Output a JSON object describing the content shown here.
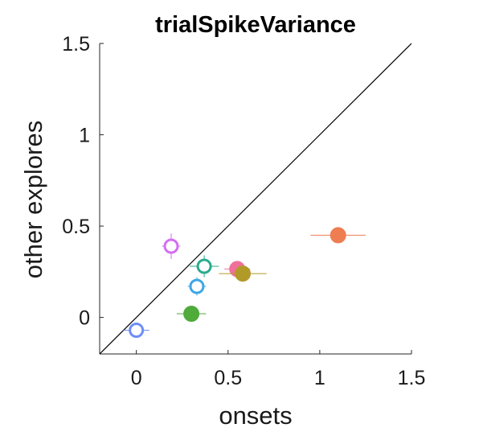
{
  "chart_data": {
    "type": "scatter",
    "title": "trialSpikeVariance",
    "xlabel": "onsets",
    "ylabel": "other explores",
    "xlim": [
      -0.2,
      1.5
    ],
    "ylim": [
      -0.2,
      1.5
    ],
    "xticks": [
      0,
      0.5,
      1,
      1.5
    ],
    "xtick_labels": [
      "0",
      "0.5",
      "1",
      "1.5"
    ],
    "yticks": [
      0,
      0.5,
      1,
      1.5
    ],
    "ytick_labels": [
      "0",
      "0.5",
      "1",
      "1.5"
    ],
    "grid": false,
    "legend": "none",
    "reference_line": {
      "type": "identity",
      "color": "#000000"
    },
    "points": [
      {
        "x": 0.0,
        "y": -0.07,
        "xerr": 0.07,
        "yerr": 0.03,
        "filled": false,
        "color": "#6e8ef5"
      },
      {
        "x": 0.19,
        "y": 0.39,
        "xerr": 0.05,
        "yerr": 0.07,
        "filled": false,
        "color": "#d36ff0"
      },
      {
        "x": 0.33,
        "y": 0.17,
        "xerr": 0.05,
        "yerr": 0.05,
        "filled": false,
        "color": "#3ea6e6"
      },
      {
        "x": 0.37,
        "y": 0.28,
        "xerr": 0.08,
        "yerr": 0.06,
        "filled": false,
        "color": "#2bab8e"
      },
      {
        "x": 0.3,
        "y": 0.02,
        "xerr": 0.08,
        "yerr": 0.03,
        "filled": true,
        "color": "#4fab3a"
      },
      {
        "x": 0.55,
        "y": 0.265,
        "xerr": 0.07,
        "yerr": 0.03,
        "filled": true,
        "color": "#f0709c"
      },
      {
        "x": 0.58,
        "y": 0.24,
        "xerr": 0.13,
        "yerr": 0.04,
        "filled": true,
        "color": "#b19a28"
      },
      {
        "x": 1.1,
        "y": 0.45,
        "xerr": 0.15,
        "yerr": 0.04,
        "filled": true,
        "color": "#ee7d52"
      }
    ]
  }
}
